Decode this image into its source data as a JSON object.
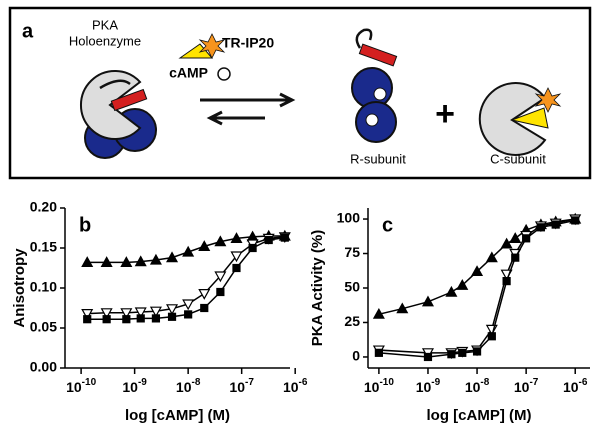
{
  "panel_a": {
    "label": "a",
    "holoenzyme": [
      "PKA",
      "Holoenzyme"
    ],
    "inhibitor": "TR-IP20",
    "camp": "cAMP",
    "r_subunit": "R-subunit",
    "plus": "+",
    "c_subunit": "C-subunit"
  },
  "chart_data": [
    {
      "type": "line",
      "panel_label": "b",
      "ylabel": "Anisotropy",
      "xlabel": "log [cAMP] (M)",
      "xscale": "log",
      "xlim": [
        5e-11,
        8e-07
      ],
      "ylim": [
        0,
        0.2
      ],
      "xticks": [
        {
          "value": 1e-10,
          "label": "10",
          "exponent": "-10"
        },
        {
          "value": 1e-09,
          "label": "10",
          "exponent": "-9"
        },
        {
          "value": 1e-08,
          "label": "10",
          "exponent": "-8"
        },
        {
          "value": 1e-07,
          "label": "10",
          "exponent": "-7"
        },
        {
          "value": 1e-06,
          "label": "10",
          "exponent": "-6"
        }
      ],
      "yticks": [
        {
          "value": 0,
          "label": "0.00"
        },
        0.05,
        {
          "value": 0.1,
          "label": "0.10"
        },
        0.15,
        {
          "value": 0.2,
          "label": "0.20"
        }
      ],
      "series": [
        {
          "color": "#000000",
          "marker": "triangle-up",
          "filled": true,
          "x": [
            1.3e-10,
            3e-10,
            7e-10,
            1.3e-09,
            2.5e-09,
            5e-09,
            1e-08,
            2e-08,
            4e-08,
            8e-08,
            1.6e-07,
            3.2e-07,
            6.4e-07
          ],
          "values": [
            0.132,
            0.132,
            0.132,
            0.133,
            0.135,
            0.138,
            0.145,
            0.152,
            0.158,
            0.162,
            0.164,
            0.165,
            0.165
          ]
        },
        {
          "color": "#000000",
          "marker": "triangle-down",
          "filled": false,
          "x": [
            1.3e-10,
            3e-10,
            7e-10,
            1.3e-09,
            2.5e-09,
            5e-09,
            1e-08,
            2e-08,
            4e-08,
            8e-08,
            1.6e-07,
            3.2e-07,
            6.4e-07
          ],
          "values": [
            0.068,
            0.069,
            0.069,
            0.07,
            0.071,
            0.074,
            0.08,
            0.093,
            0.115,
            0.14,
            0.155,
            0.162,
            0.164
          ]
        },
        {
          "color": "#000000",
          "marker": "square",
          "filled": true,
          "x": [
            1.3e-10,
            3e-10,
            7e-10,
            1.3e-09,
            2.5e-09,
            5e-09,
            1e-08,
            2e-08,
            4e-08,
            8e-08,
            1.6e-07,
            3.2e-07,
            6.4e-07
          ],
          "values": [
            0.061,
            0.061,
            0.061,
            0.062,
            0.062,
            0.064,
            0.067,
            0.075,
            0.095,
            0.125,
            0.15,
            0.16,
            0.163
          ]
        }
      ]
    },
    {
      "type": "line",
      "panel_label": "c",
      "ylabel": "PKA Activity (%)",
      "xlabel": "log [cAMP] (M)",
      "xscale": "log",
      "xlim": [
        6e-11,
        2e-06
      ],
      "ylim": [
        -8,
        108
      ],
      "xticks": [
        {
          "value": 1e-10,
          "label": "10",
          "exponent": "-10"
        },
        {
          "value": 1e-09,
          "label": "10",
          "exponent": "-9"
        },
        {
          "value": 1e-08,
          "label": "10",
          "exponent": "-8"
        },
        {
          "value": 1e-07,
          "label": "10",
          "exponent": "-7"
        },
        {
          "value": 1e-06,
          "label": "10",
          "exponent": "-6"
        }
      ],
      "yticks": [
        0,
        25,
        50,
        75,
        100
      ],
      "series": [
        {
          "color": "#000000",
          "marker": "triangle-up",
          "filled": true,
          "x": [
            1e-10,
            3e-10,
            1e-09,
            3e-09,
            5e-09,
            1e-08,
            2e-08,
            4e-08,
            6e-08,
            1e-07,
            2e-07,
            4e-07,
            1e-06
          ],
          "values": [
            31,
            35,
            40,
            47,
            52,
            62,
            72,
            82,
            86,
            92,
            96,
            98,
            100
          ]
        },
        {
          "color": "#000000",
          "marker": "triangle-down",
          "filled": false,
          "x": [
            1e-10,
            1e-09,
            3e-09,
            5e-09,
            1e-08,
            2e-08,
            4e-08,
            6e-08,
            1e-07,
            2e-07,
            4e-07,
            1e-06
          ],
          "values": [
            5,
            3,
            3,
            4,
            5,
            20,
            60,
            75,
            88,
            95,
            97,
            100
          ]
        },
        {
          "color": "#000000",
          "marker": "square",
          "filled": true,
          "x": [
            1e-10,
            1e-09,
            3e-09,
            5e-09,
            1e-08,
            2e-08,
            4e-08,
            6e-08,
            1e-07,
            2e-07,
            4e-07,
            1e-06
          ],
          "values": [
            3,
            0,
            2,
            3,
            4,
            15,
            55,
            72,
            86,
            94,
            96,
            99
          ]
        }
      ]
    }
  ]
}
